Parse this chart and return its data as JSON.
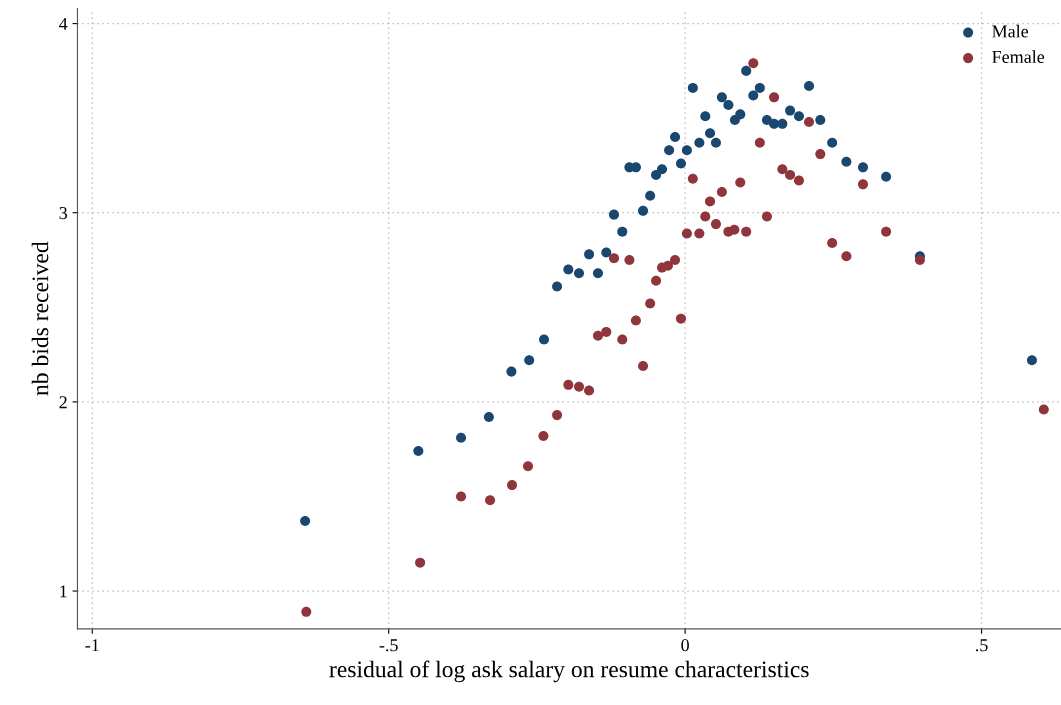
{
  "chart_data": {
    "type": "scatter",
    "xlabel": "residual of log ask salary on resume characteristics",
    "ylabel": "nb bids received",
    "xlim": [
      -1.025,
      0.634
    ],
    "ylim": [
      0.8,
      4.08
    ],
    "xticks": [
      {
        "value": -1,
        "label": "-1"
      },
      {
        "value": -0.5,
        "label": "-.5"
      },
      0,
      {
        "value": 0.5,
        "label": ".5"
      }
    ],
    "yticks": [
      1,
      2,
      3,
      4
    ],
    "grid": true,
    "legend": "top right",
    "marker": "circle",
    "series": [
      {
        "name": "Male",
        "color": "#1a476f",
        "x": [
          -0.641,
          -0.45,
          -0.378,
          -0.331,
          -0.293,
          -0.263,
          -0.238,
          -0.216,
          -0.197,
          -0.179,
          -0.162,
          -0.147,
          -0.133,
          -0.12,
          -0.106,
          -0.094,
          -0.083,
          -0.071,
          -0.059,
          -0.049,
          -0.039,
          -0.027,
          -0.017,
          -0.007,
          0.003,
          0.013,
          0.024,
          0.034,
          0.042,
          0.052,
          0.062,
          0.073,
          0.084,
          0.093,
          0.103,
          0.115,
          0.126,
          0.138,
          0.15,
          0.164,
          0.177,
          0.192,
          0.209,
          0.228,
          0.248,
          0.272,
          0.3,
          0.339,
          0.396,
          0.585
        ],
        "values": [
          1.37,
          1.74,
          1.81,
          1.92,
          2.16,
          2.22,
          2.33,
          2.61,
          2.7,
          2.68,
          2.78,
          2.68,
          2.79,
          2.99,
          2.9,
          3.24,
          3.24,
          3.01,
          3.09,
          3.2,
          3.23,
          3.33,
          3.4,
          3.26,
          3.33,
          3.66,
          3.37,
          3.51,
          3.42,
          3.37,
          3.61,
          3.57,
          3.49,
          3.52,
          3.75,
          3.62,
          3.66,
          3.49,
          3.47,
          3.47,
          3.54,
          3.51,
          3.67,
          3.49,
          3.37,
          3.27,
          3.24,
          3.19,
          2.77,
          2.22
        ]
      },
      {
        "name": "Female",
        "color": "#90353b",
        "x": [
          -0.639,
          -0.447,
          -0.378,
          -0.329,
          -0.292,
          -0.265,
          -0.239,
          -0.216,
          -0.197,
          -0.179,
          -0.162,
          -0.147,
          -0.133,
          -0.12,
          -0.106,
          -0.094,
          -0.083,
          -0.071,
          -0.059,
          -0.049,
          -0.039,
          -0.029,
          -0.017,
          -0.007,
          0.003,
          0.013,
          0.024,
          0.034,
          0.042,
          0.052,
          0.062,
          0.073,
          0.083,
          0.093,
          0.103,
          0.115,
          0.126,
          0.138,
          0.15,
          0.164,
          0.177,
          0.192,
          0.209,
          0.228,
          0.248,
          0.272,
          0.3,
          0.339,
          0.396,
          0.605
        ],
        "values": [
          0.89,
          1.15,
          1.5,
          1.48,
          1.56,
          1.66,
          1.82,
          1.93,
          2.09,
          2.08,
          2.06,
          2.35,
          2.37,
          2.76,
          2.33,
          2.75,
          2.43,
          2.19,
          2.52,
          2.64,
          2.71,
          2.72,
          2.75,
          2.44,
          2.89,
          3.18,
          2.89,
          2.98,
          3.06,
          2.94,
          3.11,
          2.9,
          2.91,
          3.16,
          2.9,
          3.79,
          3.37,
          2.98,
          3.61,
          3.23,
          3.2,
          3.17,
          3.48,
          3.31,
          2.84,
          2.77,
          3.15,
          2.9,
          2.75,
          1.96
        ]
      }
    ]
  }
}
